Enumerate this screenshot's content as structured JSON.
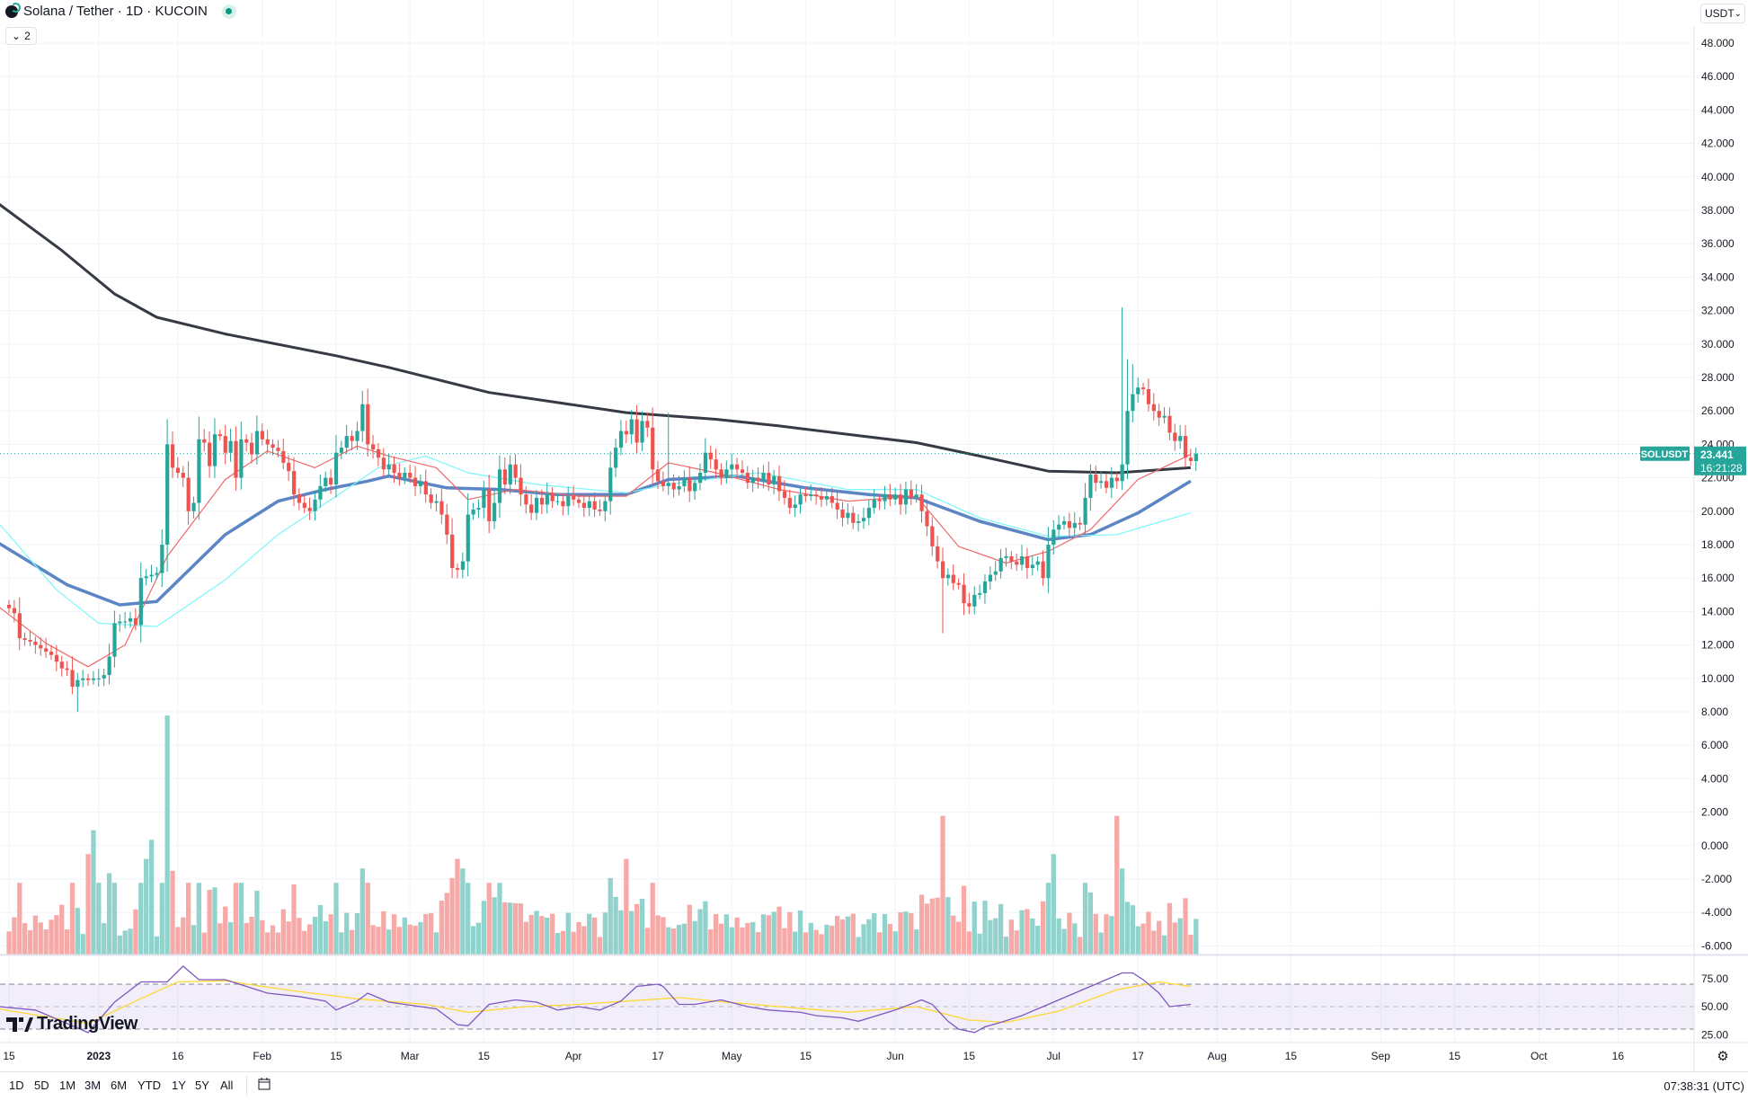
{
  "header": {
    "title": "Solana / Tether · 1D · KUCOIN",
    "legend_toggle": "2",
    "currency": "USDT"
  },
  "colors": {
    "up": "#26a69a",
    "down": "#ef5350",
    "vol_up": "#92d2cc",
    "vol_down": "#f7a9a7",
    "ma200": "#363a45",
    "ma50": "#5b85c4",
    "ma20": "#f0686a",
    "ma_cyan": "#7cf7f7",
    "rsi": "#7e57c2",
    "rsi_ma": "#fdd835"
  },
  "price_badge": {
    "symbol": "SOLUSDT",
    "price": "23.441",
    "countdown": "16:21:28"
  },
  "brand": "TradingView",
  "bottom_bar": {
    "timeframes": [
      "1D",
      "5D",
      "1M",
      "3M",
      "6M",
      "YTD",
      "1Y",
      "5Y",
      "All"
    ],
    "clock": "07:38:31 (UTC)"
  },
  "chart_data": {
    "type": "candlestick",
    "start_date": "2022-12-15",
    "interval": "1D",
    "ylim": [
      -6,
      48
    ],
    "y_ticks": [
      "48.000",
      "46.000",
      "44.000",
      "42.000",
      "40.000",
      "38.000",
      "36.000",
      "34.000",
      "32.000",
      "30.000",
      "28.000",
      "26.000",
      "24.000",
      "22.000",
      "20.000",
      "18.000",
      "16.000",
      "14.000",
      "12.000",
      "10.000",
      "8.000",
      "6.000",
      "4.000",
      "2.000",
      "0.000",
      "-2.000",
      "-4.000",
      "-6.000"
    ],
    "x_ticks": [
      {
        "day": 0,
        "label": "15"
      },
      {
        "day": 17,
        "label": "2023"
      },
      {
        "day": 32,
        "label": "16"
      },
      {
        "day": 48,
        "label": "Feb"
      },
      {
        "day": 62,
        "label": "15"
      },
      {
        "day": 76,
        "label": "Mar"
      },
      {
        "day": 90,
        "label": "15"
      },
      {
        "day": 107,
        "label": "Apr"
      },
      {
        "day": 123,
        "label": "17"
      },
      {
        "day": 137,
        "label": "May"
      },
      {
        "day": 151,
        "label": "15"
      },
      {
        "day": 168,
        "label": "Jun"
      },
      {
        "day": 182,
        "label": "15"
      },
      {
        "day": 198,
        "label": "Jul"
      },
      {
        "day": 214,
        "label": "17"
      },
      {
        "day": 229,
        "label": "Aug"
      },
      {
        "day": 243,
        "label": "15"
      },
      {
        "day": 260,
        "label": "Sep"
      },
      {
        "day": 274,
        "label": "15"
      },
      {
        "day": 290,
        "label": "Oct"
      },
      {
        "day": 305,
        "label": "16"
      }
    ],
    "first_open": 14.4,
    "close": [
      14.2,
      13.9,
      12.4,
      12.3,
      12.2,
      12.0,
      11.8,
      11.6,
      11.4,
      11.0,
      10.6,
      10.5,
      9.5,
      9.9,
      10.0,
      9.9,
      10.0,
      10.0,
      10.2,
      11.3,
      13.3,
      13.4,
      13.4,
      13.6,
      13.2,
      16.0,
      16.1,
      16.2,
      16.3,
      18.0,
      24.0,
      22.6,
      22.3,
      22.0,
      20.0,
      20.5,
      24.3,
      24.1,
      22.7,
      24.6,
      24.5,
      23.5,
      24.2,
      22.0,
      24.3,
      24.1,
      23.4,
      24.8,
      24.3,
      24.0,
      23.8,
      23.6,
      22.9,
      22.4,
      21.0,
      20.5,
      20.2,
      20.0,
      20.7,
      21.5,
      22.0,
      21.6,
      23.5,
      23.8,
      24.5,
      24.2,
      24.8,
      26.4,
      24.0,
      23.7,
      23.2,
      22.5,
      22.8,
      22.3,
      22.0,
      22.3,
      22.0,
      21.5,
      21.8,
      21.0,
      20.5,
      20.6,
      19.8,
      18.6,
      16.6,
      16.5,
      17.0,
      19.8,
      20.1,
      20.2,
      21.3,
      19.4,
      20.5,
      22.5,
      21.6,
      22.8,
      22.0,
      21.0,
      20.4,
      19.9,
      20.8,
      20.4,
      21.0,
      20.6,
      20.6,
      20.3,
      20.9,
      20.7,
      20.5,
      20.2,
      20.6,
      20.1,
      20.0,
      20.6,
      22.6,
      23.8,
      24.8,
      24.6,
      25.5,
      24.1,
      25.4,
      25.0,
      22.5,
      21.8,
      21.5,
      21.7,
      21.3,
      21.5,
      22.0,
      21.2,
      21.7,
      22.3,
      23.5,
      23.1,
      22.5,
      22.0,
      22.5,
      22.8,
      22.5,
      22.3,
      21.7,
      22.0,
      21.8,
      22.3,
      21.6,
      22.1,
      21.2,
      20.8,
      20.2,
      20.4,
      21.0,
      20.9,
      21.0,
      20.9,
      20.7,
      20.9,
      20.5,
      20.1,
      19.6,
      19.9,
      19.3,
      19.4,
      19.6,
      20.2,
      20.7,
      20.6,
      21.0,
      20.7,
      21.0,
      20.4,
      21.3,
      20.8,
      21.0,
      20.0,
      19.1,
      17.9,
      17.0,
      16.0,
      16.2,
      15.7,
      15.6,
      14.5,
      14.3,
      15.0,
      15.1,
      15.8,
      16.2,
      16.4,
      17.2,
      17.3,
      17.0,
      16.8,
      17.3,
      16.6,
      16.8,
      17.0,
      16.0,
      18.0,
      18.9,
      19.2,
      19.4,
      19.0,
      19.3,
      19.2,
      20.8,
      22.2,
      21.7,
      21.8,
      21.4,
      22.0,
      21.8,
      22.8,
      26.0,
      27.0,
      27.4,
      27.3,
      26.4,
      26.0,
      25.6,
      25.7,
      24.7,
      24.2,
      24.5,
      23.2,
      23.0,
      23.441
    ],
    "wick_extremes": [
      {
        "day": 13,
        "low": 8.0
      },
      {
        "day": 30,
        "high": 25.5
      },
      {
        "day": 67,
        "high": 27.2
      },
      {
        "day": 84,
        "low": 16.0
      },
      {
        "day": 125,
        "high": 25.9
      },
      {
        "day": 177,
        "low": 12.7
      },
      {
        "day": 211,
        "high": 32.2
      },
      {
        "day": 212,
        "high": 29.1
      },
      {
        "day": 213,
        "high": 28.8
      }
    ],
    "volume_spikes": [
      {
        "day": 15,
        "vol": 42
      },
      {
        "day": 16,
        "vol": 52
      },
      {
        "day": 17,
        "vol": 30
      },
      {
        "day": 19,
        "vol": 34
      },
      {
        "day": 26,
        "vol": 40
      },
      {
        "day": 27,
        "vol": 48
      },
      {
        "day": 30,
        "vol": 100
      },
      {
        "day": 31,
        "vol": 35
      },
      {
        "day": 67,
        "vol": 36
      },
      {
        "day": 84,
        "vol": 32
      },
      {
        "day": 85,
        "vol": 40
      },
      {
        "day": 86,
        "vol": 36
      },
      {
        "day": 114,
        "vol": 32
      },
      {
        "day": 117,
        "vol": 40
      },
      {
        "day": 177,
        "vol": 58
      },
      {
        "day": 178,
        "vol": 24
      },
      {
        "day": 198,
        "vol": 42
      },
      {
        "day": 205,
        "vol": 26
      },
      {
        "day": 210,
        "vol": 58
      },
      {
        "day": 211,
        "vol": 36
      },
      {
        "day": 212,
        "vol": 22
      }
    ],
    "moving_averages": [
      {
        "name": "MA 200",
        "color_key": "ma200",
        "points": [
          [
            -2,
            38.4
          ],
          [
            10,
            35.6
          ],
          [
            20,
            33.0
          ],
          [
            28,
            31.6
          ],
          [
            41,
            30.6
          ],
          [
            62,
            29.3
          ],
          [
            72,
            28.6
          ],
          [
            91,
            27.1
          ],
          [
            104,
            26.5
          ],
          [
            117,
            25.9
          ],
          [
            134,
            25.5
          ],
          [
            146,
            25.1
          ],
          [
            159,
            24.6
          ],
          [
            172,
            24.1
          ],
          [
            184,
            23.3
          ],
          [
            197,
            22.4
          ],
          [
            210,
            22.3
          ],
          [
            224,
            22.6
          ]
        ]
      },
      {
        "name": "MA 50",
        "color_key": "ma50",
        "points": [
          [
            -2,
            18.1
          ],
          [
            11,
            15.6
          ],
          [
            21,
            14.4
          ],
          [
            28,
            14.6
          ],
          [
            41,
            18.6
          ],
          [
            51,
            20.6
          ],
          [
            60,
            21.3
          ],
          [
            68,
            21.8
          ],
          [
            72,
            22.1
          ],
          [
            83,
            21.4
          ],
          [
            93,
            21.3
          ],
          [
            104,
            21.0
          ],
          [
            117,
            21.0
          ],
          [
            125,
            21.9
          ],
          [
            138,
            22.1
          ],
          [
            151,
            21.4
          ],
          [
            163,
            21.0
          ],
          [
            172,
            20.8
          ],
          [
            184,
            19.4
          ],
          [
            197,
            18.3
          ],
          [
            205,
            18.6
          ],
          [
            214,
            19.9
          ],
          [
            224,
            21.8
          ]
        ]
      },
      {
        "name": "MA cyan",
        "color_key": "ma_cyan",
        "points": [
          [
            -2,
            19.3
          ],
          [
            9,
            15.3
          ],
          [
            17,
            13.3
          ],
          [
            28,
            13.1
          ],
          [
            41,
            15.9
          ],
          [
            51,
            18.6
          ],
          [
            62,
            20.9
          ],
          [
            70,
            22.6
          ],
          [
            79,
            23.3
          ],
          [
            87,
            22.3
          ],
          [
            100,
            21.6
          ],
          [
            117,
            21.1
          ],
          [
            125,
            21.6
          ],
          [
            142,
            22.3
          ],
          [
            159,
            21.3
          ],
          [
            172,
            21.3
          ],
          [
            184,
            19.6
          ],
          [
            197,
            18.5
          ],
          [
            210,
            18.6
          ],
          [
            224,
            19.9
          ]
        ]
      },
      {
        "name": "MA 20",
        "color_key": "ma20",
        "points": [
          [
            -2,
            14.3
          ],
          [
            7,
            12.1
          ],
          [
            15,
            10.7
          ],
          [
            22,
            12.0
          ],
          [
            30,
            17.3
          ],
          [
            41,
            21.9
          ],
          [
            49,
            23.6
          ],
          [
            58,
            22.6
          ],
          [
            66,
            23.9
          ],
          [
            72,
            23.3
          ],
          [
            81,
            22.6
          ],
          [
            87,
            20.7
          ],
          [
            96,
            21.3
          ],
          [
            108,
            20.9
          ],
          [
            117,
            20.9
          ],
          [
            125,
            22.9
          ],
          [
            134,
            22.3
          ],
          [
            146,
            21.3
          ],
          [
            159,
            20.6
          ],
          [
            172,
            20.9
          ],
          [
            180,
            17.9
          ],
          [
            189,
            16.9
          ],
          [
            197,
            17.6
          ],
          [
            205,
            18.9
          ],
          [
            214,
            21.9
          ],
          [
            224,
            23.4
          ]
        ]
      }
    ],
    "rsi": {
      "ylim": [
        0,
        100
      ],
      "bands": [
        30,
        50,
        70
      ],
      "ticks": [
        "75.00",
        "50.00",
        "25.00"
      ],
      "points": [
        [
          -2,
          50
        ],
        [
          5,
          47
        ],
        [
          15,
          27
        ],
        [
          20,
          54
        ],
        [
          25,
          72
        ],
        [
          30,
          72
        ],
        [
          33,
          86
        ],
        [
          36,
          74
        ],
        [
          41,
          74
        ],
        [
          45,
          68
        ],
        [
          49,
          62
        ],
        [
          55,
          59
        ],
        [
          60,
          55
        ],
        [
          62,
          47
        ],
        [
          66,
          55
        ],
        [
          68,
          62
        ],
        [
          72,
          54
        ],
        [
          75,
          52
        ],
        [
          81,
          48
        ],
        [
          85,
          34
        ],
        [
          87,
          33
        ],
        [
          91,
          52
        ],
        [
          96,
          56
        ],
        [
          100,
          54
        ],
        [
          104,
          47
        ],
        [
          108,
          50
        ],
        [
          112,
          47
        ],
        [
          116,
          55
        ],
        [
          119,
          68
        ],
        [
          123,
          70
        ],
        [
          124,
          68
        ],
        [
          127,
          52
        ],
        [
          130,
          52
        ],
        [
          135,
          56
        ],
        [
          140,
          50
        ],
        [
          144,
          47
        ],
        [
          150,
          45
        ],
        [
          153,
          42
        ],
        [
          158,
          40
        ],
        [
          161,
          37
        ],
        [
          168,
          47
        ],
        [
          173,
          56
        ],
        [
          175,
          52
        ],
        [
          178,
          37
        ],
        [
          180,
          30
        ],
        [
          183,
          27
        ],
        [
          185,
          32
        ],
        [
          188,
          36
        ],
        [
          192,
          42
        ],
        [
          197,
          52
        ],
        [
          205,
          68
        ],
        [
          211,
          80
        ],
        [
          213,
          80
        ],
        [
          215,
          74
        ],
        [
          218,
          62
        ],
        [
          220,
          50
        ],
        [
          224,
          52
        ]
      ]
    },
    "rsi_ma": {
      "points": [
        [
          -2,
          48
        ],
        [
          15,
          35
        ],
        [
          24,
          55
        ],
        [
          32,
          72
        ],
        [
          41,
          73
        ],
        [
          54,
          64
        ],
        [
          66,
          57
        ],
        [
          79,
          52
        ],
        [
          87,
          45
        ],
        [
          98,
          50
        ],
        [
          108,
          52
        ],
        [
          117,
          55
        ],
        [
          127,
          58
        ],
        [
          136,
          54
        ],
        [
          146,
          50
        ],
        [
          159,
          45
        ],
        [
          172,
          50
        ],
        [
          182,
          38
        ],
        [
          189,
          36
        ],
        [
          199,
          46
        ],
        [
          210,
          65
        ],
        [
          218,
          72
        ],
        [
          224,
          68
        ]
      ]
    }
  }
}
